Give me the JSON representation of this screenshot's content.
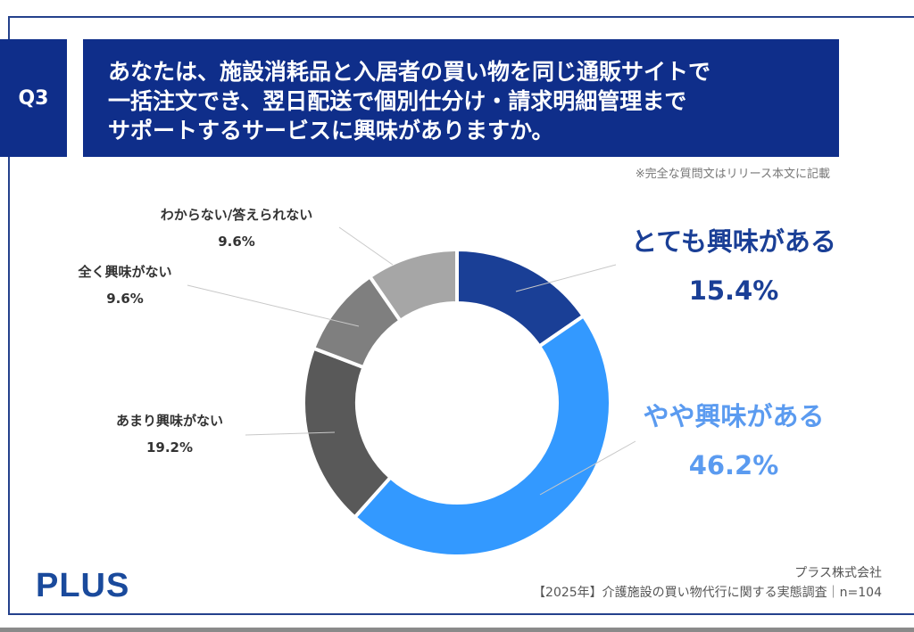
{
  "question_label": "Q3",
  "question_text": "あなたは、施設消耗品と入居者の買い物を同じ通販サイトで\n一括注文でき、翌日配送で個別仕分け・請求明細管理まで\nサポートするサービスに興味がありますか。",
  "note": "※完全な質問文はリリース本文に記載",
  "logo": "PLUS",
  "footer": {
    "company": "プラス株式会社",
    "survey": "【2025年】介護施設の買い物代行に関する実態調査｜n=104"
  },
  "chart_data": {
    "type": "pie",
    "donut": true,
    "categories": [
      "とても興味がある",
      "やや興味がある",
      "あまり興味がない",
      "全く興味がない",
      "わからない/答えられない"
    ],
    "values": [
      15.4,
      46.2,
      19.2,
      9.6,
      9.6
    ],
    "labels": [
      "15.4%",
      "46.2%",
      "19.2%",
      "9.6%",
      "9.6%"
    ],
    "colors": [
      "#1a3f96",
      "#3399ff",
      "#595959",
      "#7f7f7f",
      "#a6a6a6"
    ]
  }
}
